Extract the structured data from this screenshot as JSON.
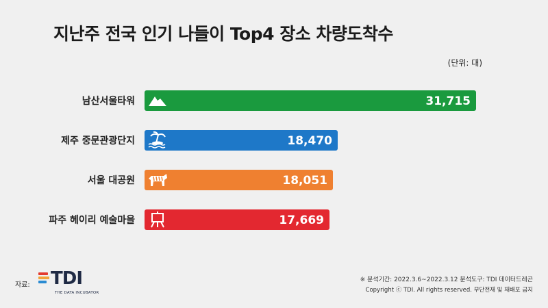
{
  "title": "지난주 전국 인기 나들이 Top4 장소 차량도착수",
  "unit": "(단위: 대)",
  "colors": {
    "green": "#1a9a3e",
    "blue": "#1e78c8",
    "orange": "#ef8030",
    "red": "#e32830"
  },
  "chart_data": {
    "type": "bar",
    "orientation": "horizontal",
    "categories": [
      "남산서울타워",
      "제주 중문관광단지",
      "서울 대공원",
      "파주 헤이리 예술마을"
    ],
    "values": [
      31715,
      18470,
      18051,
      17669
    ],
    "value_labels": [
      "31,715",
      "18,470",
      "18,051",
      "17,669"
    ],
    "bar_colors": [
      "#1a9a3e",
      "#1e78c8",
      "#ef8030",
      "#e32830"
    ],
    "icons": [
      "mountain-icon",
      "palm-island-icon",
      "tiger-icon",
      "easel-icon"
    ],
    "title": "지난주 전국 인기 나들이 Top4 장소 차량도착수"
  },
  "footer": {
    "source_label": "자료:",
    "logo_text": "TDI",
    "logo_sub": "THE DATA INCUBATOR",
    "note": "※ 분석기간: 2022.3.6~2022.3.12 분석도구: TDI 데이터드레곤",
    "copyright": "Copyright ⓒ TDI. All rights reserved. 무단전재 및 재배포 금지"
  }
}
